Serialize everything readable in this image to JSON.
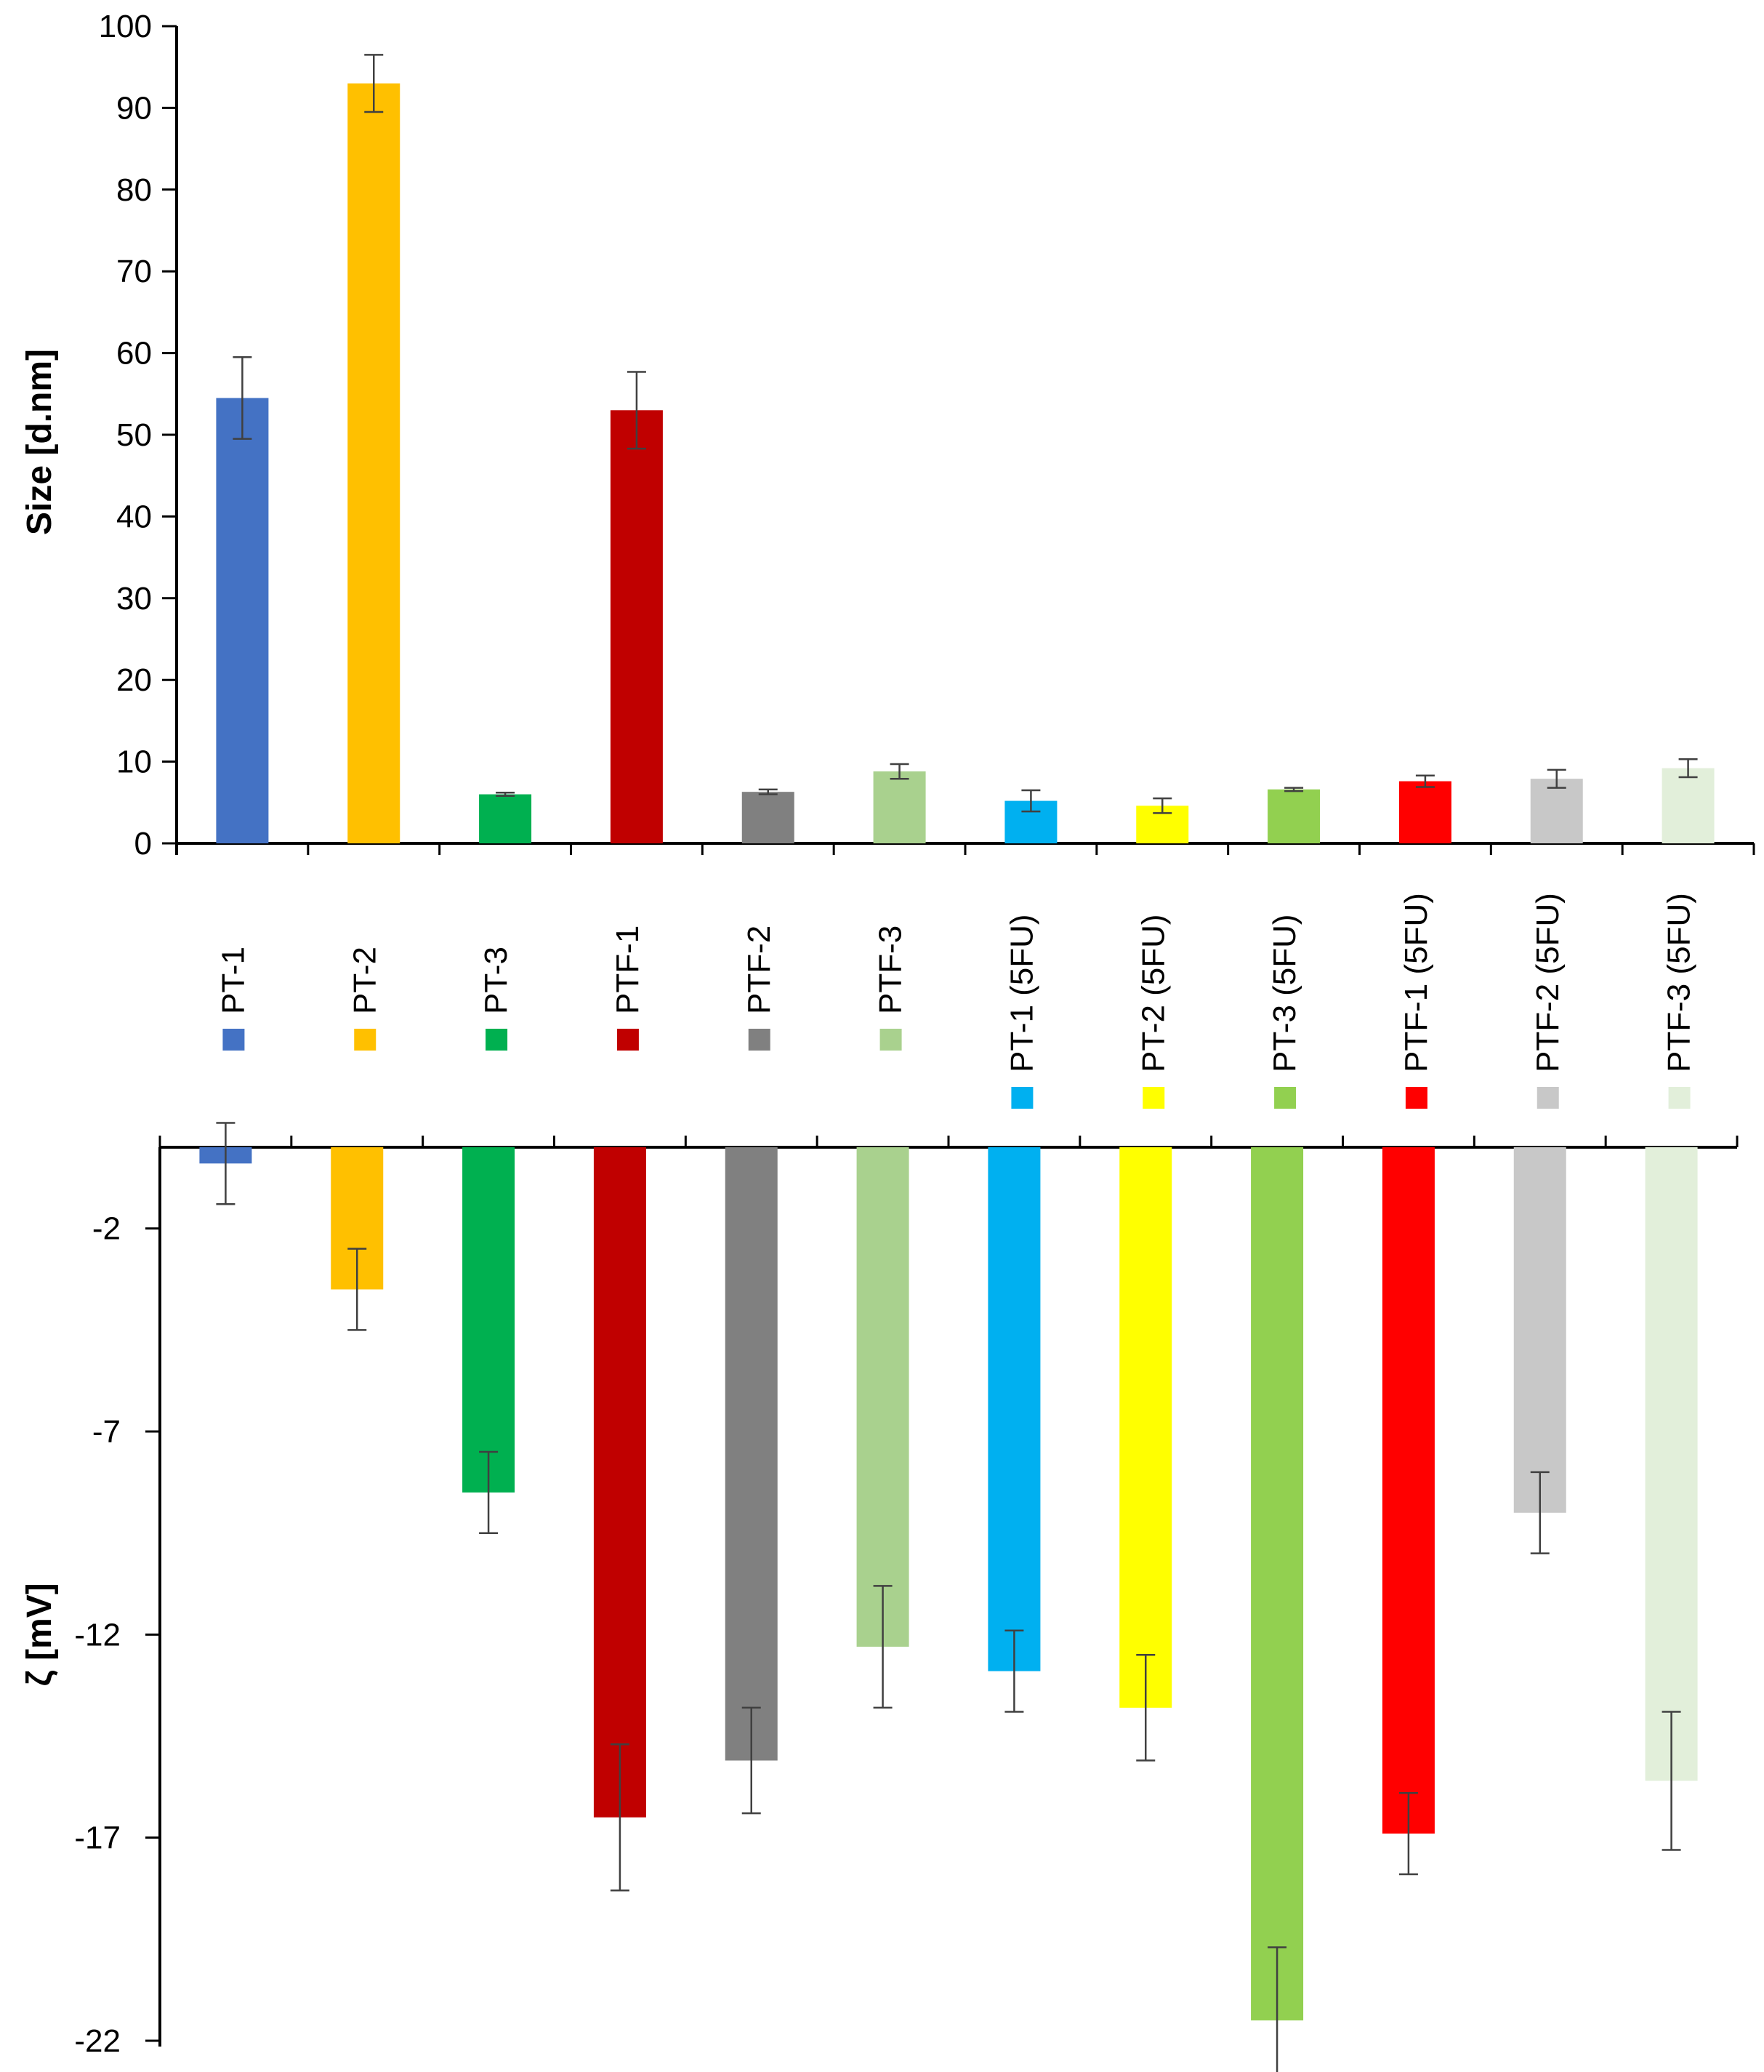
{
  "chart_data": [
    {
      "type": "bar",
      "title": "",
      "xlabel": "",
      "ylabel": "Size [d.nm]",
      "ylim": [
        0,
        100
      ],
      "yticks": [
        0,
        10,
        20,
        30,
        40,
        50,
        60,
        70,
        80,
        90,
        100
      ],
      "grid": false,
      "categories": [
        "PT-1",
        "PT-2",
        "PT-3",
        "PTF-1",
        "PTF-2",
        "PTF-3",
        "PT-1 (5FU)",
        "PT-2 (5FU)",
        "PT-3 (5FU)",
        "PTF-1 (5FU)",
        "PTF-2 (5FU)",
        "PTF-3 (5FU)"
      ],
      "values": [
        54.5,
        93,
        6,
        53,
        6.3,
        8.8,
        5.2,
        4.6,
        6.6,
        7.6,
        7.9,
        9.2
      ],
      "errors": [
        5,
        3.5,
        0.2,
        4.7,
        0.3,
        0.9,
        1.3,
        0.9,
        0.2,
        0.7,
        1.1,
        1.1
      ]
    },
    {
      "type": "bar",
      "title": "",
      "xlabel": "",
      "ylabel": "ζ [mV]",
      "ylim": [
        -22,
        0
      ],
      "yticks": [
        -2,
        -7,
        -12,
        -17,
        -22
      ],
      "grid": false,
      "categories": [
        "PT-1",
        "PT-2",
        "PT-3",
        "PTF-1",
        "PTF-2",
        "PTF-3",
        "PT-1 (5FU)",
        "PT-2 (5FU)",
        "PT-3 (5FU)",
        "PTF-1 (5FU)",
        "PTF-2 (5FU)",
        "PTF-3 (5FU)"
      ],
      "values": [
        -0.4,
        -3.5,
        -8.5,
        -16.5,
        -15.1,
        -12.3,
        -12.9,
        -13.8,
        -21.5,
        -16.9,
        -9,
        -15.6
      ],
      "errors": [
        1,
        1,
        1,
        1.8,
        1.3,
        1.5,
        1,
        1.3,
        1.8,
        1,
        1,
        1.7
      ]
    }
  ],
  "colors": [
    "#4472C4",
    "#FFC000",
    "#00B050",
    "#C00000",
    "#808080",
    "#A9D18E",
    "#00B0F0",
    "#FFFF00",
    "#92D050",
    "#FF0000",
    "#C8C8C8",
    "#E2EFDA"
  ]
}
